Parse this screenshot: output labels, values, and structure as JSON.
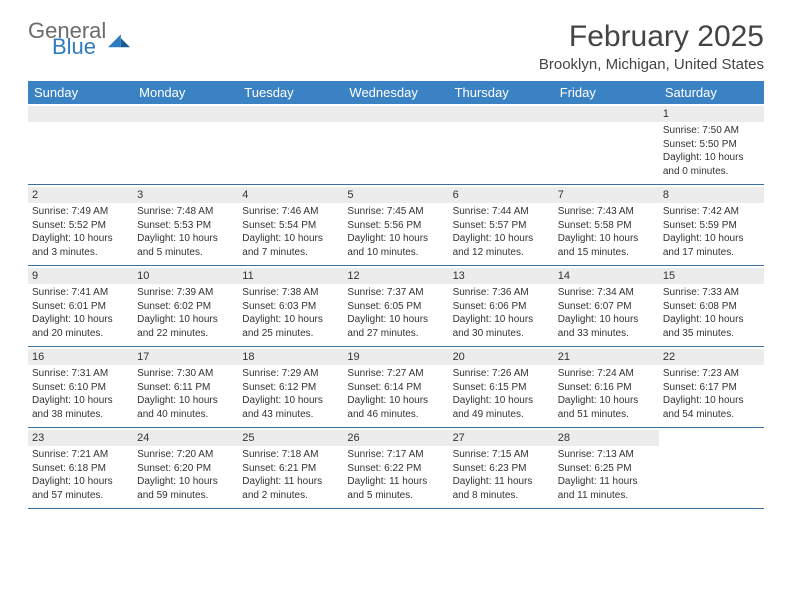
{
  "logo": {
    "general": "General",
    "blue": "Blue"
  },
  "title": "February 2025",
  "location": "Brooklyn, Michigan, United States",
  "colors": {
    "header_bg": "#3b82c4",
    "header_text": "#ffffff",
    "row_border": "#3b6fa0",
    "daynum_bg": "#ececec",
    "text": "#333333",
    "logo_gray": "#6b6b6b",
    "logo_blue": "#2f7bbf"
  },
  "day_headers": [
    "Sunday",
    "Monday",
    "Tuesday",
    "Wednesday",
    "Thursday",
    "Friday",
    "Saturday"
  ],
  "weeks": [
    [
      {
        "num": "",
        "sunrise": "",
        "sunset": "",
        "daylight": ""
      },
      {
        "num": "",
        "sunrise": "",
        "sunset": "",
        "daylight": ""
      },
      {
        "num": "",
        "sunrise": "",
        "sunset": "",
        "daylight": ""
      },
      {
        "num": "",
        "sunrise": "",
        "sunset": "",
        "daylight": ""
      },
      {
        "num": "",
        "sunrise": "",
        "sunset": "",
        "daylight": ""
      },
      {
        "num": "",
        "sunrise": "",
        "sunset": "",
        "daylight": ""
      },
      {
        "num": "1",
        "sunrise": "Sunrise: 7:50 AM",
        "sunset": "Sunset: 5:50 PM",
        "daylight": "Daylight: 10 hours and 0 minutes."
      }
    ],
    [
      {
        "num": "2",
        "sunrise": "Sunrise: 7:49 AM",
        "sunset": "Sunset: 5:52 PM",
        "daylight": "Daylight: 10 hours and 3 minutes."
      },
      {
        "num": "3",
        "sunrise": "Sunrise: 7:48 AM",
        "sunset": "Sunset: 5:53 PM",
        "daylight": "Daylight: 10 hours and 5 minutes."
      },
      {
        "num": "4",
        "sunrise": "Sunrise: 7:46 AM",
        "sunset": "Sunset: 5:54 PM",
        "daylight": "Daylight: 10 hours and 7 minutes."
      },
      {
        "num": "5",
        "sunrise": "Sunrise: 7:45 AM",
        "sunset": "Sunset: 5:56 PM",
        "daylight": "Daylight: 10 hours and 10 minutes."
      },
      {
        "num": "6",
        "sunrise": "Sunrise: 7:44 AM",
        "sunset": "Sunset: 5:57 PM",
        "daylight": "Daylight: 10 hours and 12 minutes."
      },
      {
        "num": "7",
        "sunrise": "Sunrise: 7:43 AM",
        "sunset": "Sunset: 5:58 PM",
        "daylight": "Daylight: 10 hours and 15 minutes."
      },
      {
        "num": "8",
        "sunrise": "Sunrise: 7:42 AM",
        "sunset": "Sunset: 5:59 PM",
        "daylight": "Daylight: 10 hours and 17 minutes."
      }
    ],
    [
      {
        "num": "9",
        "sunrise": "Sunrise: 7:41 AM",
        "sunset": "Sunset: 6:01 PM",
        "daylight": "Daylight: 10 hours and 20 minutes."
      },
      {
        "num": "10",
        "sunrise": "Sunrise: 7:39 AM",
        "sunset": "Sunset: 6:02 PM",
        "daylight": "Daylight: 10 hours and 22 minutes."
      },
      {
        "num": "11",
        "sunrise": "Sunrise: 7:38 AM",
        "sunset": "Sunset: 6:03 PM",
        "daylight": "Daylight: 10 hours and 25 minutes."
      },
      {
        "num": "12",
        "sunrise": "Sunrise: 7:37 AM",
        "sunset": "Sunset: 6:05 PM",
        "daylight": "Daylight: 10 hours and 27 minutes."
      },
      {
        "num": "13",
        "sunrise": "Sunrise: 7:36 AM",
        "sunset": "Sunset: 6:06 PM",
        "daylight": "Daylight: 10 hours and 30 minutes."
      },
      {
        "num": "14",
        "sunrise": "Sunrise: 7:34 AM",
        "sunset": "Sunset: 6:07 PM",
        "daylight": "Daylight: 10 hours and 33 minutes."
      },
      {
        "num": "15",
        "sunrise": "Sunrise: 7:33 AM",
        "sunset": "Sunset: 6:08 PM",
        "daylight": "Daylight: 10 hours and 35 minutes."
      }
    ],
    [
      {
        "num": "16",
        "sunrise": "Sunrise: 7:31 AM",
        "sunset": "Sunset: 6:10 PM",
        "daylight": "Daylight: 10 hours and 38 minutes."
      },
      {
        "num": "17",
        "sunrise": "Sunrise: 7:30 AM",
        "sunset": "Sunset: 6:11 PM",
        "daylight": "Daylight: 10 hours and 40 minutes."
      },
      {
        "num": "18",
        "sunrise": "Sunrise: 7:29 AM",
        "sunset": "Sunset: 6:12 PM",
        "daylight": "Daylight: 10 hours and 43 minutes."
      },
      {
        "num": "19",
        "sunrise": "Sunrise: 7:27 AM",
        "sunset": "Sunset: 6:14 PM",
        "daylight": "Daylight: 10 hours and 46 minutes."
      },
      {
        "num": "20",
        "sunrise": "Sunrise: 7:26 AM",
        "sunset": "Sunset: 6:15 PM",
        "daylight": "Daylight: 10 hours and 49 minutes."
      },
      {
        "num": "21",
        "sunrise": "Sunrise: 7:24 AM",
        "sunset": "Sunset: 6:16 PM",
        "daylight": "Daylight: 10 hours and 51 minutes."
      },
      {
        "num": "22",
        "sunrise": "Sunrise: 7:23 AM",
        "sunset": "Sunset: 6:17 PM",
        "daylight": "Daylight: 10 hours and 54 minutes."
      }
    ],
    [
      {
        "num": "23",
        "sunrise": "Sunrise: 7:21 AM",
        "sunset": "Sunset: 6:18 PM",
        "daylight": "Daylight: 10 hours and 57 minutes."
      },
      {
        "num": "24",
        "sunrise": "Sunrise: 7:20 AM",
        "sunset": "Sunset: 6:20 PM",
        "daylight": "Daylight: 10 hours and 59 minutes."
      },
      {
        "num": "25",
        "sunrise": "Sunrise: 7:18 AM",
        "sunset": "Sunset: 6:21 PM",
        "daylight": "Daylight: 11 hours and 2 minutes."
      },
      {
        "num": "26",
        "sunrise": "Sunrise: 7:17 AM",
        "sunset": "Sunset: 6:22 PM",
        "daylight": "Daylight: 11 hours and 5 minutes."
      },
      {
        "num": "27",
        "sunrise": "Sunrise: 7:15 AM",
        "sunset": "Sunset: 6:23 PM",
        "daylight": "Daylight: 11 hours and 8 minutes."
      },
      {
        "num": "28",
        "sunrise": "Sunrise: 7:13 AM",
        "sunset": "Sunset: 6:25 PM",
        "daylight": "Daylight: 11 hours and 11 minutes."
      },
      {
        "num": "",
        "sunrise": "",
        "sunset": "",
        "daylight": ""
      }
    ]
  ]
}
